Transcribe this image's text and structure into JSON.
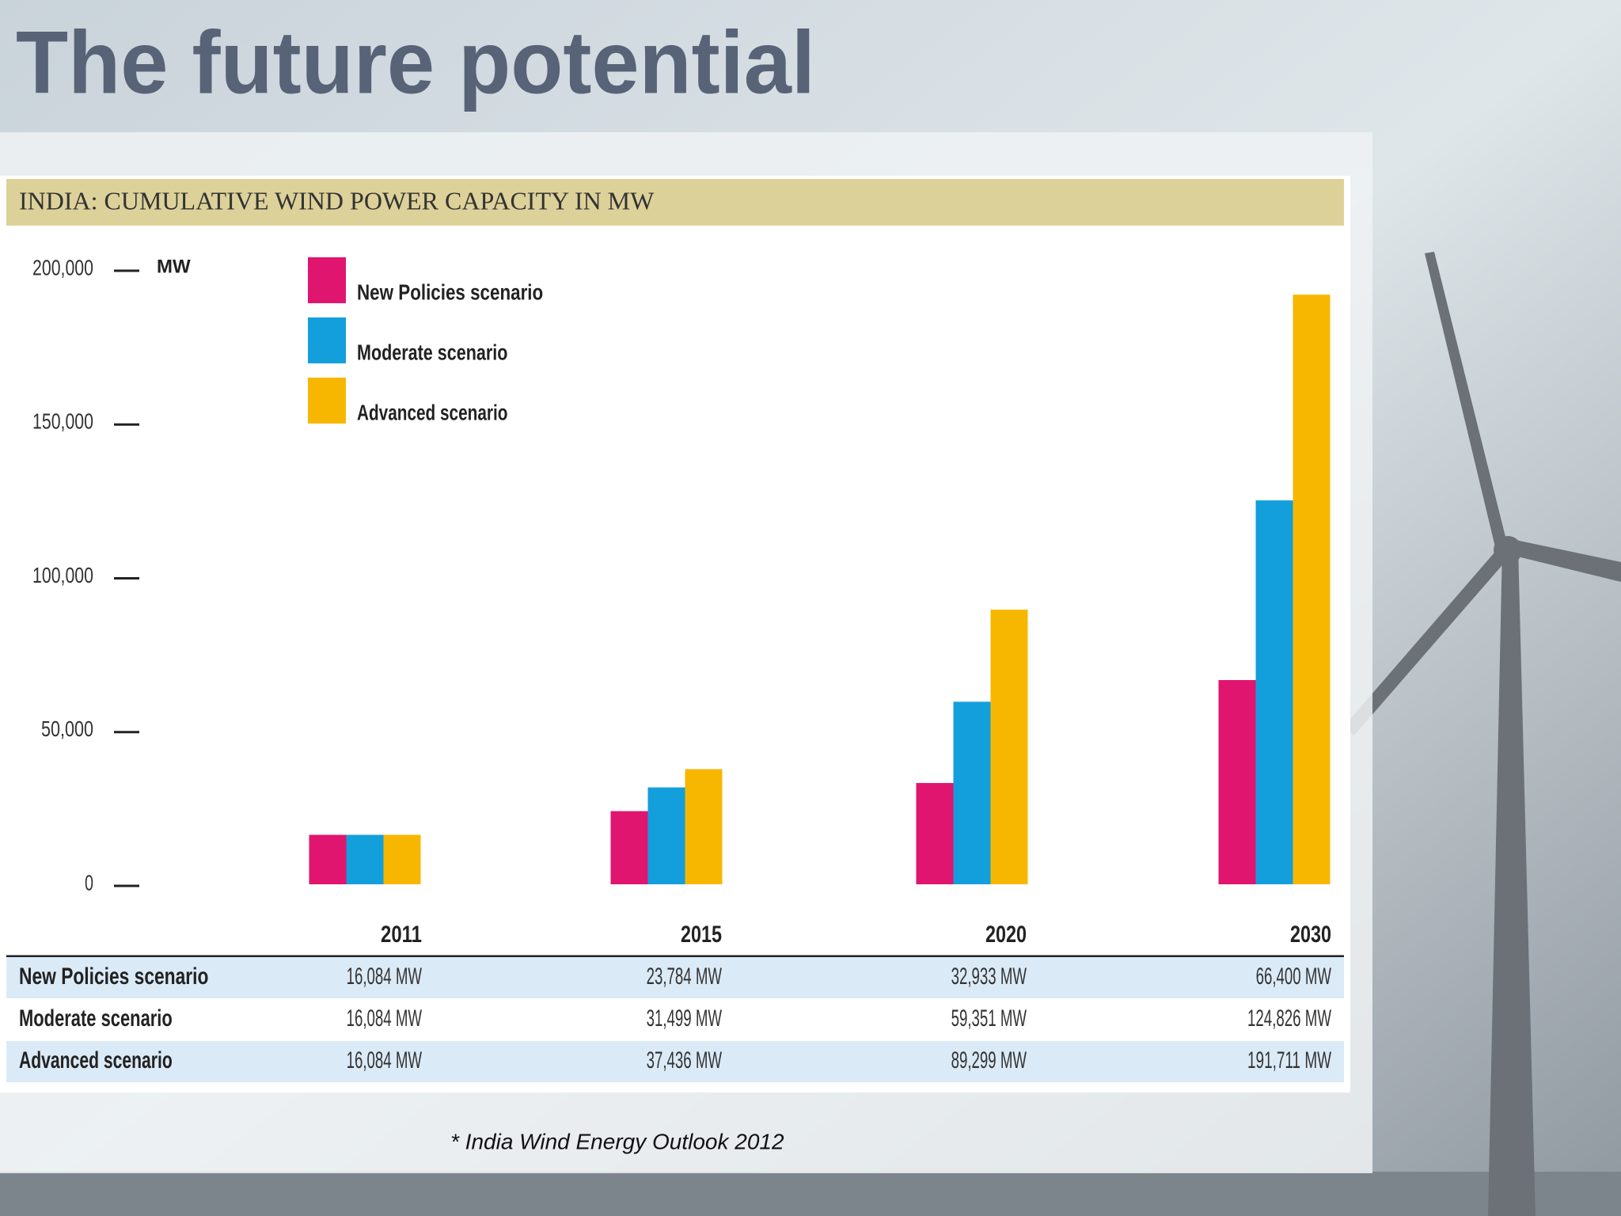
{
  "slide_title": "The future potential",
  "footnote": "* India Wind Energy Outlook 2012",
  "chart_data": {
    "type": "bar",
    "title": "INDIA: CUMULATIVE WIND POWER CAPACITY IN MW",
    "y_label": "MW",
    "categories": [
      "2011",
      "2015",
      "2020",
      "2030"
    ],
    "series": [
      {
        "name": "New Policies scenario",
        "color": "#e0156f",
        "values": [
          16084,
          23784,
          32933,
          66400
        ],
        "value_labels": [
          "16,084 MW",
          "23,784 MW",
          "32,933 MW",
          "66,400 MW"
        ]
      },
      {
        "name": "Moderate scenario",
        "color": "#139fdc",
        "values": [
          16084,
          31499,
          59351,
          124826
        ],
        "value_labels": [
          "16,084 MW",
          "31,499 MW",
          "59,351 MW",
          "124,826 MW"
        ]
      },
      {
        "name": "Advanced scenario",
        "color": "#f7b700",
        "values": [
          16084,
          37436,
          89299,
          191711
        ],
        "value_labels": [
          "16,084 MW",
          "37,436 MW",
          "89,299 MW",
          "191,711 MW"
        ]
      }
    ],
    "ylim": [
      0,
      200000
    ],
    "yticks": [
      0,
      {
        "value": 50000,
        "label": "50,000"
      },
      {
        "value": 100000,
        "label": "100,000"
      },
      {
        "value": 150000,
        "label": "150,000"
      },
      {
        "value": 200000,
        "label": "200,000"
      }
    ],
    "grid": false,
    "legend": "top-left"
  }
}
